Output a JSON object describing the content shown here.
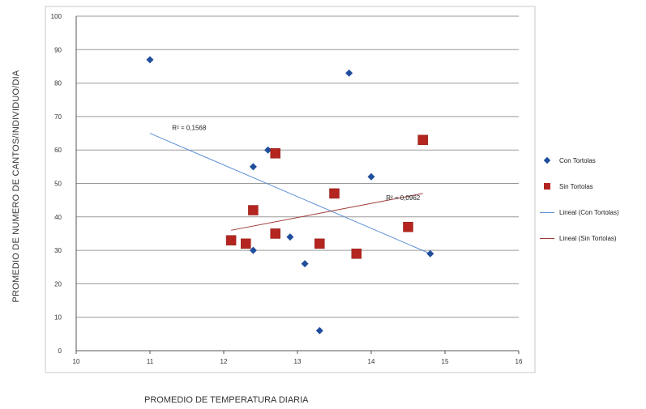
{
  "chart_data": {
    "type": "scatter",
    "xlabel": "PROMEDIO DE TEMPERATURA DIARIA",
    "ylabel": "PROMEDIO DE NUMERO DE CANTOS/INDIVIDUO/DIA",
    "xlim": [
      10,
      16
    ],
    "ylim": [
      0,
      100
    ],
    "x_ticks": [
      "10",
      "11",
      "12",
      "13",
      "14",
      "15",
      "16"
    ],
    "y_ticks": [
      "0",
      "10",
      "20",
      "30",
      "40",
      "50",
      "60",
      "70",
      "80",
      "90",
      "100"
    ],
    "grid": "horizontal",
    "legend_position": "right",
    "series": [
      {
        "name": "Con Tortolas",
        "marker": "diamond",
        "color": "#1f4e9c",
        "points": [
          [
            11.0,
            87
          ],
          [
            12.4,
            55
          ],
          [
            12.6,
            60
          ],
          [
            12.4,
            30
          ],
          [
            12.9,
            34
          ],
          [
            13.1,
            26
          ],
          [
            13.3,
            6
          ],
          [
            13.7,
            83
          ],
          [
            14.0,
            52
          ],
          [
            14.8,
            29
          ]
        ]
      },
      {
        "name": "Sin Tortolas",
        "marker": "square",
        "color": "#b5251f",
        "points": [
          [
            12.1,
            33
          ],
          [
            12.3,
            32
          ],
          [
            12.4,
            42
          ],
          [
            12.7,
            59
          ],
          [
            12.7,
            35
          ],
          [
            13.3,
            32
          ],
          [
            13.5,
            47
          ],
          [
            13.8,
            29
          ],
          [
            14.5,
            37
          ],
          [
            14.7,
            63
          ]
        ]
      }
    ],
    "trendlines": [
      {
        "name": "Lineal (Con Tortolas)",
        "color": "#5b8dd6",
        "x": [
          11.0,
          14.8
        ],
        "y": [
          65,
          29
        ],
        "r2_label": "R² = 0,1568"
      },
      {
        "name": "Lineal (Sin Tortolas)",
        "color": "#9c3a37",
        "x": [
          12.1,
          14.7
        ],
        "y": [
          36,
          47
        ],
        "r2_label": "R² = 0,0962"
      }
    ]
  }
}
